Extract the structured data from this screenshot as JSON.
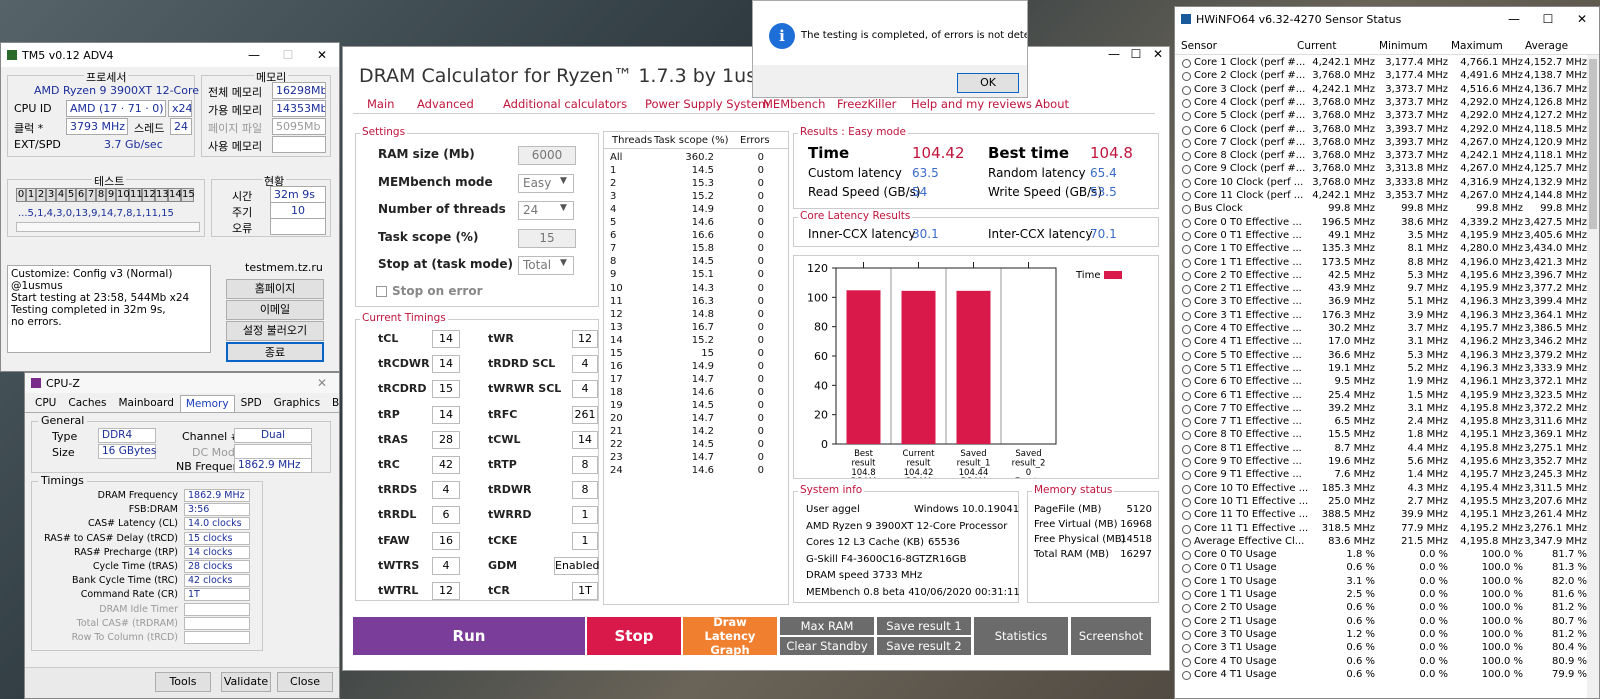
{
  "tm5": {
    "title": "TM5 v0.12 ADV4",
    "processor_label": "프로세서",
    "processor": "AMD Ryzen 9 3900XT 12-Core",
    "cpuid_label": "CPU ID",
    "cpuid": "AMD  (17 · 71 · 0)",
    "threads": "x24",
    "clock_label": "클럭 *",
    "clock": "3793 MHz",
    "speed_label": "스레드",
    "speed": "24",
    "extspd_label": "EXT/SPD",
    "extspd": "3.7 Gb/sec",
    "memory_label": "메모리",
    "total_mem_label": "전체 메모리",
    "total_mem": "16298Mb",
    "avail_mem_label": "가용 메모리",
    "avail_mem": "14353Mb",
    "pagefile_label": "페이지 파일",
    "pagefile": "5095Mb",
    "used_mem_label": "사용 메모리",
    "used_mem": "",
    "test_label": "테스트",
    "test_cells": [
      "0",
      "1",
      "2",
      "3",
      "4",
      "5",
      "6",
      "7",
      "8",
      "9",
      "10",
      "11",
      "12",
      "13",
      "14",
      "15"
    ],
    "test_sequence": "...5,1,4,3,0,13,9,14,7,8,1,11,15",
    "status_label": "현황",
    "time_label": "시간",
    "time": "32m 9s",
    "cycle_label": "주기",
    "cycle": "10",
    "error_label": "오류",
    "error": "",
    "log": [
      "Customize: Config v3 (Normal) @1usmus",
      "Start testing at 23:58, 544Mb x24",
      "Testing completed in 32m 9s,",
      "no errors."
    ],
    "site": "testmem.tz.ru",
    "btn_home": "홈페이지",
    "btn_email": "이메일",
    "btn_load": "설정 불러오기",
    "btn_exit": "종료"
  },
  "cpuz": {
    "title": "CPU-Z",
    "tabs": [
      "CPU",
      "Caches",
      "Mainboard",
      "Memory",
      "SPD",
      "Graphics",
      "Bench",
      "About"
    ],
    "active_tab": "Memory",
    "general_label": "General",
    "type_label": "Type",
    "type": "DDR4",
    "channel_label": "Channel #",
    "channel": "Dual",
    "size_label": "Size",
    "size": "16 GBytes",
    "dcmode_label": "DC Mode",
    "nbfreq_label": "NB Frequency",
    "nbfreq": "1862.9 MHz",
    "timings_label": "Timings",
    "timings": [
      {
        "label": "DRAM Frequency",
        "value": "1862.9 MHz"
      },
      {
        "label": "FSB:DRAM",
        "value": "3:56"
      },
      {
        "label": "CAS# Latency (CL)",
        "value": "14.0 clocks"
      },
      {
        "label": "RAS# to CAS# Delay (tRCD)",
        "value": "15 clocks"
      },
      {
        "label": "RAS# Precharge (tRP)",
        "value": "14 clocks"
      },
      {
        "label": "Cycle Time (tRAS)",
        "value": "28 clocks"
      },
      {
        "label": "Bank Cycle Time (tRC)",
        "value": "42 clocks"
      },
      {
        "label": "Command Rate (CR)",
        "value": "1T"
      },
      {
        "label": "DRAM Idle Timer",
        "value": ""
      },
      {
        "label": "Total CAS# (tRDRAM)",
        "value": ""
      },
      {
        "label": "Row To Column (tRCD)",
        "value": ""
      }
    ],
    "footer_tools": "Tools",
    "footer_validate": "Validate",
    "footer_close": "Close"
  },
  "dram": {
    "title": "DRAM Calculator for Ryzen™ 1.7.3 by 1usmus",
    "menu": [
      "Main",
      "Advanced",
      "Additional calculators",
      "Power Supply System",
      "MEMbench",
      "FreezKiller",
      "Help and my reviews",
      "About"
    ],
    "settings_label": "Settings",
    "settings": [
      {
        "label": "RAM size (Mb)",
        "value": "6000"
      },
      {
        "label": "MEMbench mode",
        "value": "Easy"
      },
      {
        "label": "Number of threads",
        "value": "24"
      },
      {
        "label": "Task scope (%)",
        "value": "15"
      },
      {
        "label": "Stop at (task mode)",
        "value": "Total"
      }
    ],
    "stop_on_error": "Stop on error",
    "timings_label": "Current Timings",
    "timings_left": [
      {
        "k": "tCL",
        "v": "14"
      },
      {
        "k": "tRCDWR",
        "v": "14"
      },
      {
        "k": "tRCDRD",
        "v": "15"
      },
      {
        "k": "tRP",
        "v": "14"
      },
      {
        "k": "tRAS",
        "v": "28"
      },
      {
        "k": "tRC",
        "v": "42"
      },
      {
        "k": "tRRDS",
        "v": "4"
      },
      {
        "k": "tRRDL",
        "v": "6"
      },
      {
        "k": "tFAW",
        "v": "16"
      },
      {
        "k": "tWTRS",
        "v": "4"
      },
      {
        "k": "tWTRL",
        "v": "12"
      }
    ],
    "timings_right": [
      {
        "k": "tWR",
        "v": "12"
      },
      {
        "k": "tRDRD SCL",
        "v": "4"
      },
      {
        "k": "tWRWR SCL",
        "v": "4"
      },
      {
        "k": "tRFC",
        "v": "261"
      },
      {
        "k": "tCWL",
        "v": "14"
      },
      {
        "k": "tRTP",
        "v": "8"
      },
      {
        "k": "tRDWR",
        "v": "8"
      },
      {
        "k": "tWRRD",
        "v": "1"
      },
      {
        "k": "tCKE",
        "v": "1"
      },
      {
        "k": "GDM",
        "v": "Enabled"
      },
      {
        "k": "tCR",
        "v": "1T"
      }
    ],
    "thread_headers": [
      "Threads",
      "Task scope (%)",
      "Errors"
    ],
    "threads": [
      [
        "All",
        "360.2",
        "0"
      ],
      [
        "1",
        "14.5",
        "0"
      ],
      [
        "2",
        "15.3",
        "0"
      ],
      [
        "3",
        "15.2",
        "0"
      ],
      [
        "4",
        "14.9",
        "0"
      ],
      [
        "5",
        "14.6",
        "0"
      ],
      [
        "6",
        "16.6",
        "0"
      ],
      [
        "7",
        "15.8",
        "0"
      ],
      [
        "8",
        "14.5",
        "0"
      ],
      [
        "9",
        "15.1",
        "0"
      ],
      [
        "10",
        "14.3",
        "0"
      ],
      [
        "11",
        "16.3",
        "0"
      ],
      [
        "12",
        "14.8",
        "0"
      ],
      [
        "13",
        "16.7",
        "0"
      ],
      [
        "14",
        "15.2",
        "0"
      ],
      [
        "15",
        "15",
        "0"
      ],
      [
        "16",
        "14.9",
        "0"
      ],
      [
        "17",
        "14.7",
        "0"
      ],
      [
        "18",
        "14.6",
        "0"
      ],
      [
        "19",
        "14.5",
        "0"
      ],
      [
        "20",
        "14.7",
        "0"
      ],
      [
        "21",
        "14.2",
        "0"
      ],
      [
        "22",
        "14.5",
        "0"
      ],
      [
        "23",
        "14.7",
        "0"
      ],
      [
        "24",
        "14.6",
        "0"
      ]
    ],
    "results_label": "Results : Easy mode",
    "time_label": "Time",
    "time": "104.42",
    "best_label": "Best time",
    "best": "104.8",
    "custom_lat_label": "Custom latency",
    "custom_lat": "63.5",
    "random_lat_label": "Random latency",
    "random_lat": "65.4",
    "read_label": "Read Speed (GB/s)",
    "read": "54",
    "write_label": "Write Speed (GB/s)",
    "write": "53.5",
    "core_lat_label": "Core Latency Results",
    "inner_label": "Inner-CCX latency",
    "inner": "30.1",
    "inter_label": "Inter-CCX latency",
    "inter": "70.1",
    "sysinfo_label": "System info",
    "sysinfo": [
      [
        "User aggel",
        "Windows 10.0.19041"
      ],
      [
        "AMD Ryzen 9 3900XT 12-Core Processor",
        ""
      ],
      [
        "Cores 12   L3 Cache (KB)",
        "65536"
      ],
      [
        "G-Skill F4-3600C16-8GTZR16GB",
        ""
      ],
      [
        "DRAM speed 3733 MHz",
        ""
      ],
      [
        "MEMbench 0.8 beta 4",
        "10/06/2020 00:31:11"
      ]
    ],
    "memstatus_label": "Memory status",
    "memstatus": [
      [
        "PageFile (MB)",
        "5120"
      ],
      [
        "Free Virtual (MB)",
        "16968"
      ],
      [
        "Free Physical (MB)",
        "14518"
      ],
      [
        "Total RAM (MB)",
        "16297"
      ]
    ],
    "btn_run": "Run",
    "btn_stop": "Stop",
    "btn_draw": "Draw Latency Graph",
    "btn_maxram": "Max RAM",
    "btn_clear": "Clear Standby",
    "btn_save1": "Save result 1",
    "btn_save2": "Save result 2",
    "btn_stats": "Statistics",
    "btn_shot": "Screenshot",
    "colors": {
      "accent": "#c0143c",
      "run": "#7a3d9a",
      "stop": "#d8194a",
      "draw": "#f08030",
      "gray": "#6b6b6b"
    }
  },
  "chart_data": {
    "type": "bar",
    "categories": [
      [
        "Best",
        "result",
        "104.8",
        "DRAM",
        "speed",
        "3733",
        "MHz"
      ],
      [
        "Current",
        "result",
        "104.42",
        "DRAM",
        "speed",
        "3733",
        "MHz"
      ],
      [
        "Saved",
        "result_1",
        "104.44",
        "DRAM",
        "speed",
        "3733",
        "MHz"
      ],
      [
        "Saved",
        "result_2",
        "0",
        "Empty"
      ]
    ],
    "values": [
      104.8,
      104.42,
      104.44,
      0
    ],
    "legend": "Time",
    "ylim": [
      0,
      120
    ],
    "yticks": [
      "0",
      "20",
      "40",
      "60",
      "80",
      "100",
      "120"
    ],
    "color": "#d8194a"
  },
  "dialog": {
    "message": "The testing is completed, of errors is not detected.",
    "ok": "OK"
  },
  "hwinfo": {
    "title": "HWiNFO64 v6.32-4270 Sensor Status",
    "headers": [
      "Sensor",
      "Current",
      "Minimum",
      "Maximum",
      "Average"
    ],
    "rows": [
      [
        "Core 1 Clock (perf #...",
        "4,242.1 MHz",
        "3,177.4 MHz",
        "4,766.1 MHz",
        "4,152.7 MHz"
      ],
      [
        "Core 2 Clock (perf #...",
        "3,768.0 MHz",
        "3,177.4 MHz",
        "4,491.6 MHz",
        "4,138.7 MHz"
      ],
      [
        "Core 3 Clock (perf #...",
        "4,242.1 MHz",
        "3,373.7 MHz",
        "4,516.6 MHz",
        "4,136.7 MHz"
      ],
      [
        "Core 4 Clock (perf #...",
        "3,768.0 MHz",
        "3,373.7 MHz",
        "4,292.0 MHz",
        "4,126.8 MHz"
      ],
      [
        "Core 5 Clock (perf #...",
        "3,768.0 MHz",
        "3,373.7 MHz",
        "4,292.0 MHz",
        "4,127.2 MHz"
      ],
      [
        "Core 6 Clock (perf #...",
        "3,768.0 MHz",
        "3,393.7 MHz",
        "4,292.0 MHz",
        "4,118.5 MHz"
      ],
      [
        "Core 7 Clock (perf #...",
        "3,768.0 MHz",
        "3,393.7 MHz",
        "4,267.0 MHz",
        "4,120.9 MHz"
      ],
      [
        "Core 8 Clock (perf #...",
        "3,768.0 MHz",
        "3,373.7 MHz",
        "4,242.1 MHz",
        "4,118.1 MHz"
      ],
      [
        "Core 9 Clock (perf #...",
        "3,768.0 MHz",
        "3,313.8 MHz",
        "4,267.0 MHz",
        "4,125.7 MHz"
      ],
      [
        "Core 10 Clock (perf ...",
        "3,768.0 MHz",
        "3,333.8 MHz",
        "4,316.9 MHz",
        "4,132.9 MHz"
      ],
      [
        "Core 11 Clock (perf ...",
        "4,242.1 MHz",
        "3,353.7 MHz",
        "4,267.0 MHz",
        "4,144.8 MHz"
      ],
      [
        "Bus Clock",
        "99.8 MHz",
        "99.8 MHz",
        "99.8 MHz",
        "99.8 MHz"
      ],
      [
        "Core 0 T0 Effective ...",
        "196.5 MHz",
        "38.6 MHz",
        "4,339.2 MHz",
        "3,427.5 MHz"
      ],
      [
        "Core 0 T1 Effective ...",
        "49.1 MHz",
        "3.5 MHz",
        "4,195.9 MHz",
        "3,405.6 MHz"
      ],
      [
        "Core 1 T0 Effective ...",
        "135.3 MHz",
        "8.1 MHz",
        "4,280.0 MHz",
        "3,434.0 MHz"
      ],
      [
        "Core 1 T1 Effective ...",
        "173.5 MHz",
        "8.8 MHz",
        "4,196.0 MHz",
        "3,421.3 MHz"
      ],
      [
        "Core 2 T0 Effective ...",
        "42.5 MHz",
        "5.3 MHz",
        "4,195.6 MHz",
        "3,396.7 MHz"
      ],
      [
        "Core 2 T1 Effective ...",
        "43.9 MHz",
        "9.7 MHz",
        "4,195.9 MHz",
        "3,377.2 MHz"
      ],
      [
        "Core 3 T0 Effective ...",
        "36.9 MHz",
        "5.1 MHz",
        "4,196.3 MHz",
        "3,399.4 MHz"
      ],
      [
        "Core 3 T1 Effective ...",
        "176.3 MHz",
        "3.9 MHz",
        "4,196.3 MHz",
        "3,364.1 MHz"
      ],
      [
        "Core 4 T0 Effective ...",
        "30.2 MHz",
        "3.7 MHz",
        "4,195.7 MHz",
        "3,386.5 MHz"
      ],
      [
        "Core 4 T1 Effective ...",
        "17.0 MHz",
        "3.1 MHz",
        "4,196.2 MHz",
        "3,346.2 MHz"
      ],
      [
        "Core 5 T0 Effective ...",
        "36.6 MHz",
        "5.3 MHz",
        "4,196.3 MHz",
        "3,379.2 MHz"
      ],
      [
        "Core 5 T1 Effective ...",
        "19.1 MHz",
        "5.2 MHz",
        "4,196.3 MHz",
        "3,333.9 MHz"
      ],
      [
        "Core 6 T0 Effective ...",
        "9.5 MHz",
        "1.9 MHz",
        "4,196.1 MHz",
        "3,372.1 MHz"
      ],
      [
        "Core 6 T1 Effective ...",
        "25.4 MHz",
        "1.5 MHz",
        "4,195.9 MHz",
        "3,323.5 MHz"
      ],
      [
        "Core 7 T0 Effective ...",
        "39.2 MHz",
        "3.1 MHz",
        "4,195.8 MHz",
        "3,372.2 MHz"
      ],
      [
        "Core 7 T1 Effective ...",
        "6.5 MHz",
        "2.4 MHz",
        "4,195.8 MHz",
        "3,311.6 MHz"
      ],
      [
        "Core 8 T0 Effective ...",
        "15.5 MHz",
        "1.8 MHz",
        "4,195.1 MHz",
        "3,369.1 MHz"
      ],
      [
        "Core 8 T1 Effective ...",
        "8.7 MHz",
        "4.4 MHz",
        "4,195.8 MHz",
        "3,275.1 MHz"
      ],
      [
        "Core 9 T0 Effective ...",
        "19.6 MHz",
        "5.6 MHz",
        "4,195.6 MHz",
        "3,352.7 MHz"
      ],
      [
        "Core 9 T1 Effective ...",
        "7.6 MHz",
        "1.4 MHz",
        "4,195.7 MHz",
        "3,245.3 MHz"
      ],
      [
        "Core 10 T0 Effective ...",
        "185.3 MHz",
        "4.3 MHz",
        "4,195.4 MHz",
        "3,311.5 MHz"
      ],
      [
        "Core 10 T1 Effective ...",
        "25.0 MHz",
        "2.7 MHz",
        "4,195.5 MHz",
        "3,207.6 MHz"
      ],
      [
        "Core 11 T0 Effective ...",
        "388.5 MHz",
        "39.9 MHz",
        "4,195.1 MHz",
        "3,261.4 MHz"
      ],
      [
        "Core 11 T1 Effective ...",
        "318.5 MHz",
        "77.9 MHz",
        "4,195.2 MHz",
        "3,276.1 MHz"
      ],
      [
        "Average Effective Cl...",
        "83.6 MHz",
        "21.5 MHz",
        "4,195.8 MHz",
        "3,347.9 MHz"
      ],
      [
        "Core 0 T0 Usage",
        "1.8 %",
        "0.0 %",
        "100.0 %",
        "81.7 %"
      ],
      [
        "Core 0 T1 Usage",
        "0.6 %",
        "0.0 %",
        "100.0 %",
        "81.3 %"
      ],
      [
        "Core 1 T0 Usage",
        "3.1 %",
        "0.0 %",
        "100.0 %",
        "82.0 %"
      ],
      [
        "Core 1 T1 Usage",
        "2.5 %",
        "0.0 %",
        "100.0 %",
        "81.6 %"
      ],
      [
        "Core 2 T0 Usage",
        "0.6 %",
        "0.0 %",
        "100.0 %",
        "81.2 %"
      ],
      [
        "Core 2 T1 Usage",
        "0.6 %",
        "0.0 %",
        "100.0 %",
        "80.7 %"
      ],
      [
        "Core 3 T0 Usage",
        "1.2 %",
        "0.0 %",
        "100.0 %",
        "81.2 %"
      ],
      [
        "Core 3 T1 Usage",
        "0.6 %",
        "0.0 %",
        "100.0 %",
        "80.4 %"
      ],
      [
        "Core 4 T0 Usage",
        "0.6 %",
        "0.0 %",
        "100.0 %",
        "80.9 %"
      ],
      [
        "Core 4 T1 Usage",
        "0.6 %",
        "0.0 %",
        "100.0 %",
        "79.9 %"
      ]
    ]
  }
}
